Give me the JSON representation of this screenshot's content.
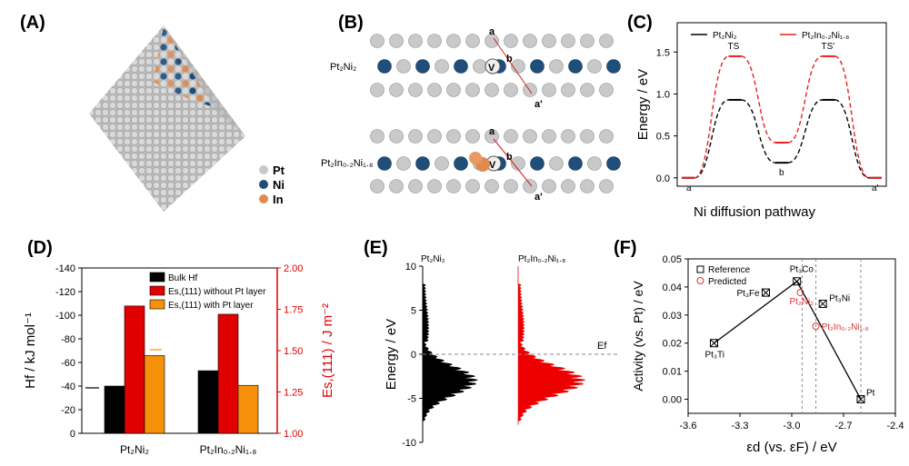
{
  "panels": {
    "A": {
      "label": "(A)",
      "legend": [
        {
          "name": "Pt",
          "color": "#c8c8c8"
        },
        {
          "name": "Ni",
          "color": "#1f4e79"
        },
        {
          "name": "In",
          "color": "#e08a50"
        }
      ]
    },
    "B": {
      "label": "(B)",
      "top_formula": "Pt₂Ni₂",
      "bottom_formula": "Pt₂In₀.₂Ni₁.₈",
      "site_labels": [
        "a",
        "b",
        "a'",
        "V"
      ]
    },
    "C": {
      "label": "(C)"
    },
    "D": {
      "label": "(D)"
    },
    "E": {
      "label": "(E)"
    },
    "F": {
      "label": "(F)"
    }
  },
  "chart_data": [
    {
      "id": "C",
      "type": "line",
      "title": "",
      "xlabel": "Ni diffusion pathway",
      "ylabel": "Energy / eV",
      "ylim": [
        -0.1,
        1.85
      ],
      "yticks": [
        "0.0",
        "0.5",
        "1.0",
        "1.5"
      ],
      "states": [
        "a",
        "TS",
        "b",
        "TS'",
        "a'"
      ],
      "series": [
        {
          "name": "Pt₂Ni₂",
          "color": "#000000",
          "values": [
            0,
            0.93,
            0.18,
            0.93,
            0
          ]
        },
        {
          "name": "Pt₂In₀.₂Ni₁.₈",
          "color": "#e8201f",
          "values": [
            0,
            1.45,
            0.42,
            1.45,
            0
          ]
        }
      ],
      "state_labels": [
        "a",
        "TS",
        "b",
        "TS'",
        "a'"
      ]
    },
    {
      "id": "D",
      "type": "bar",
      "categories": [
        "Pt₂Ni₂",
        "Pt₂In₀.₂Ni₁.₈"
      ],
      "ylabel_left": "Hf / kJ mol⁻¹",
      "ylim_left": [
        0,
        -140
      ],
      "yticks_left": [
        "0",
        "-20",
        "-40",
        "-60",
        "-80",
        "-100",
        "-120",
        "-140"
      ],
      "ylabel_right": "Es,(111) / J m⁻²",
      "ylim_right": [
        1.0,
        2.0
      ],
      "yticks_right": [
        "1.00",
        "1.25",
        "1.50",
        "1.75",
        "2.00"
      ],
      "series": [
        {
          "name": "Bulk Hf",
          "color": "#000000",
          "axis": "left",
          "values": [
            -40,
            -53
          ]
        },
        {
          "name": "Es,(111) without Pt layer",
          "color": "#e00000",
          "axis": "right",
          "values": [
            1.77,
            1.72
          ]
        },
        {
          "name": "Es,(111) with Pt layer",
          "color": "#f5920a",
          "axis": "right",
          "values": [
            1.47,
            1.29
          ]
        }
      ]
    },
    {
      "id": "E",
      "type": "area",
      "ylabel": "Energy / eV",
      "ylim": [
        -10,
        10
      ],
      "yticks": [
        "-10",
        "-5",
        "0",
        "5",
        "10"
      ],
      "series": [
        {
          "name": "Pt₂Ni₂",
          "color": "#000000"
        },
        {
          "name": "Pt₂In₀.₂Ni₁.₈",
          "color": "#ee0000"
        }
      ],
      "fermi_label": "Ef"
    },
    {
      "id": "F",
      "type": "scatter",
      "xlabel": "εd (vs. εF) / eV",
      "ylabel": "Activity (vs. Pt) / eV",
      "xlim": [
        -3.6,
        -2.4
      ],
      "ylim": [
        -0.005,
        0.05
      ],
      "xticks": [
        "-3.6",
        "-3.3",
        "-3.0",
        "-2.7",
        "-2.4"
      ],
      "yticks": [
        "0.00",
        "0.01",
        "0.02",
        "0.03",
        "0.04",
        "0.05"
      ],
      "legend": [
        {
          "name": "Reference"
        },
        {
          "name": "Predicted"
        }
      ],
      "reference_points": [
        {
          "label": "Pt₃Ti",
          "x": -3.45,
          "y": 0.02
        },
        {
          "label": "Pt₃Fe",
          "x": -3.15,
          "y": 0.038
        },
        {
          "label": "Pt₃Co",
          "x": -2.97,
          "y": 0.042
        },
        {
          "label": "Pt₃Ni",
          "x": -2.82,
          "y": 0.034
        },
        {
          "label": "Pt",
          "x": -2.6,
          "y": 0.0
        }
      ],
      "predicted_points": [
        {
          "label": "Pt₂Ni₂",
          "x": -2.95,
          "y": 0.038
        },
        {
          "label": "Pt₂In₀.₂Ni₁.₈",
          "x": -2.86,
          "y": 0.026
        }
      ],
      "volcano": [
        [
          -3.45,
          0.02
        ],
        [
          -2.97,
          0.042
        ],
        [
          -2.6,
          0.0
        ]
      ],
      "vlines": [
        -2.94,
        -2.86,
        -2.6
      ]
    }
  ]
}
